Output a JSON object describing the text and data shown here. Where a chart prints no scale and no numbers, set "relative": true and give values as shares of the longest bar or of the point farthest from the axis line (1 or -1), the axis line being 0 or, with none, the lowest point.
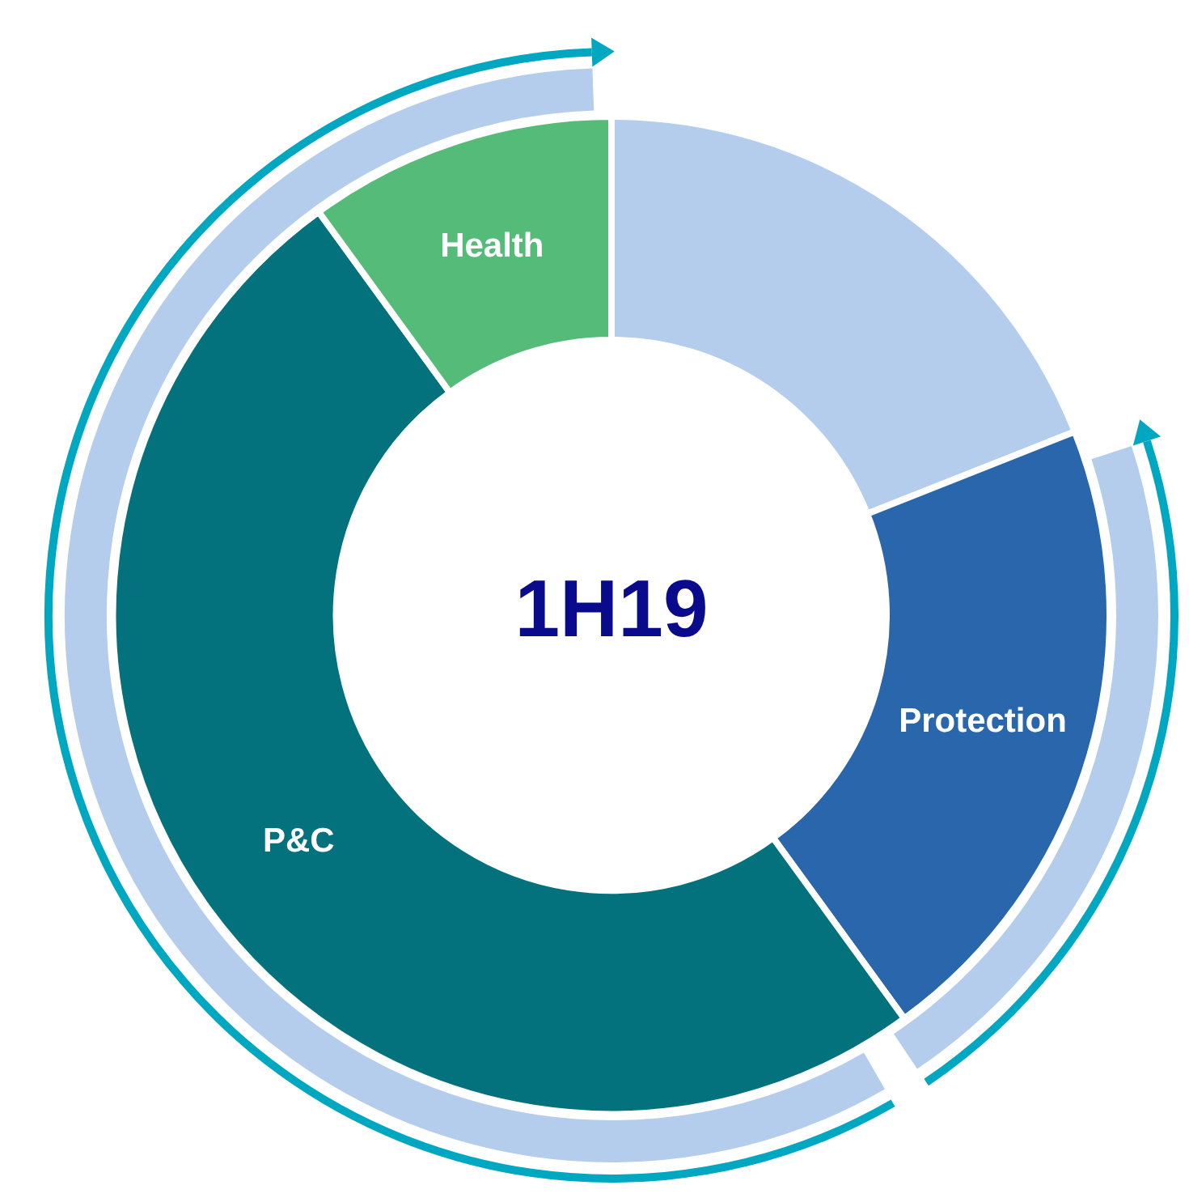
{
  "chart_data": {
    "type": "donut",
    "title": "1H19",
    "categories": [
      null,
      "Protection",
      "P&C",
      "Health"
    ],
    "values": [
      19,
      21,
      50,
      10
    ],
    "colors": [
      "#b4cdec",
      "#2966ac",
      "#03727c",
      "#55bb78"
    ],
    "relative": true
  }
}
